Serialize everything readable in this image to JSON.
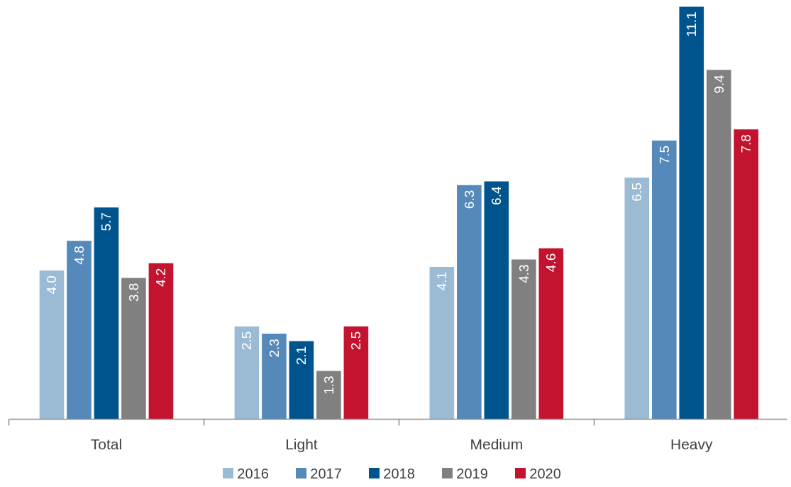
{
  "chart_data": {
    "type": "bar",
    "categories": [
      "Total",
      "Light",
      "Medium",
      "Heavy"
    ],
    "series": [
      {
        "name": "2016",
        "color": "#9bbbd4",
        "values": [
          4.0,
          2.5,
          4.1,
          6.5
        ],
        "value_labels": [
          "4.0",
          "2.5",
          "4.1",
          "6.5"
        ]
      },
      {
        "name": "2017",
        "color": "#5589b9",
        "values": [
          4.8,
          2.3,
          6.3,
          7.5
        ],
        "value_labels": [
          "4.8",
          "2.3",
          "6.3",
          "7.5"
        ]
      },
      {
        "name": "2018",
        "color": "#00548e",
        "values": [
          5.7,
          2.1,
          6.4,
          11.1
        ],
        "value_labels": [
          "5.7",
          "2.1",
          "6.4",
          "11.1"
        ]
      },
      {
        "name": "2019",
        "color": "#808080",
        "values": [
          3.8,
          1.3,
          4.3,
          9.4
        ],
        "value_labels": [
          "3.8",
          "1.3",
          "4.3",
          "9.4"
        ]
      },
      {
        "name": "2020",
        "color": "#c3132f",
        "values": [
          4.2,
          2.5,
          4.6,
          7.8
        ],
        "value_labels": [
          "4.2",
          "2.5",
          "4.6",
          "7.8"
        ]
      }
    ],
    "legend": "bottom",
    "grid": false
  }
}
